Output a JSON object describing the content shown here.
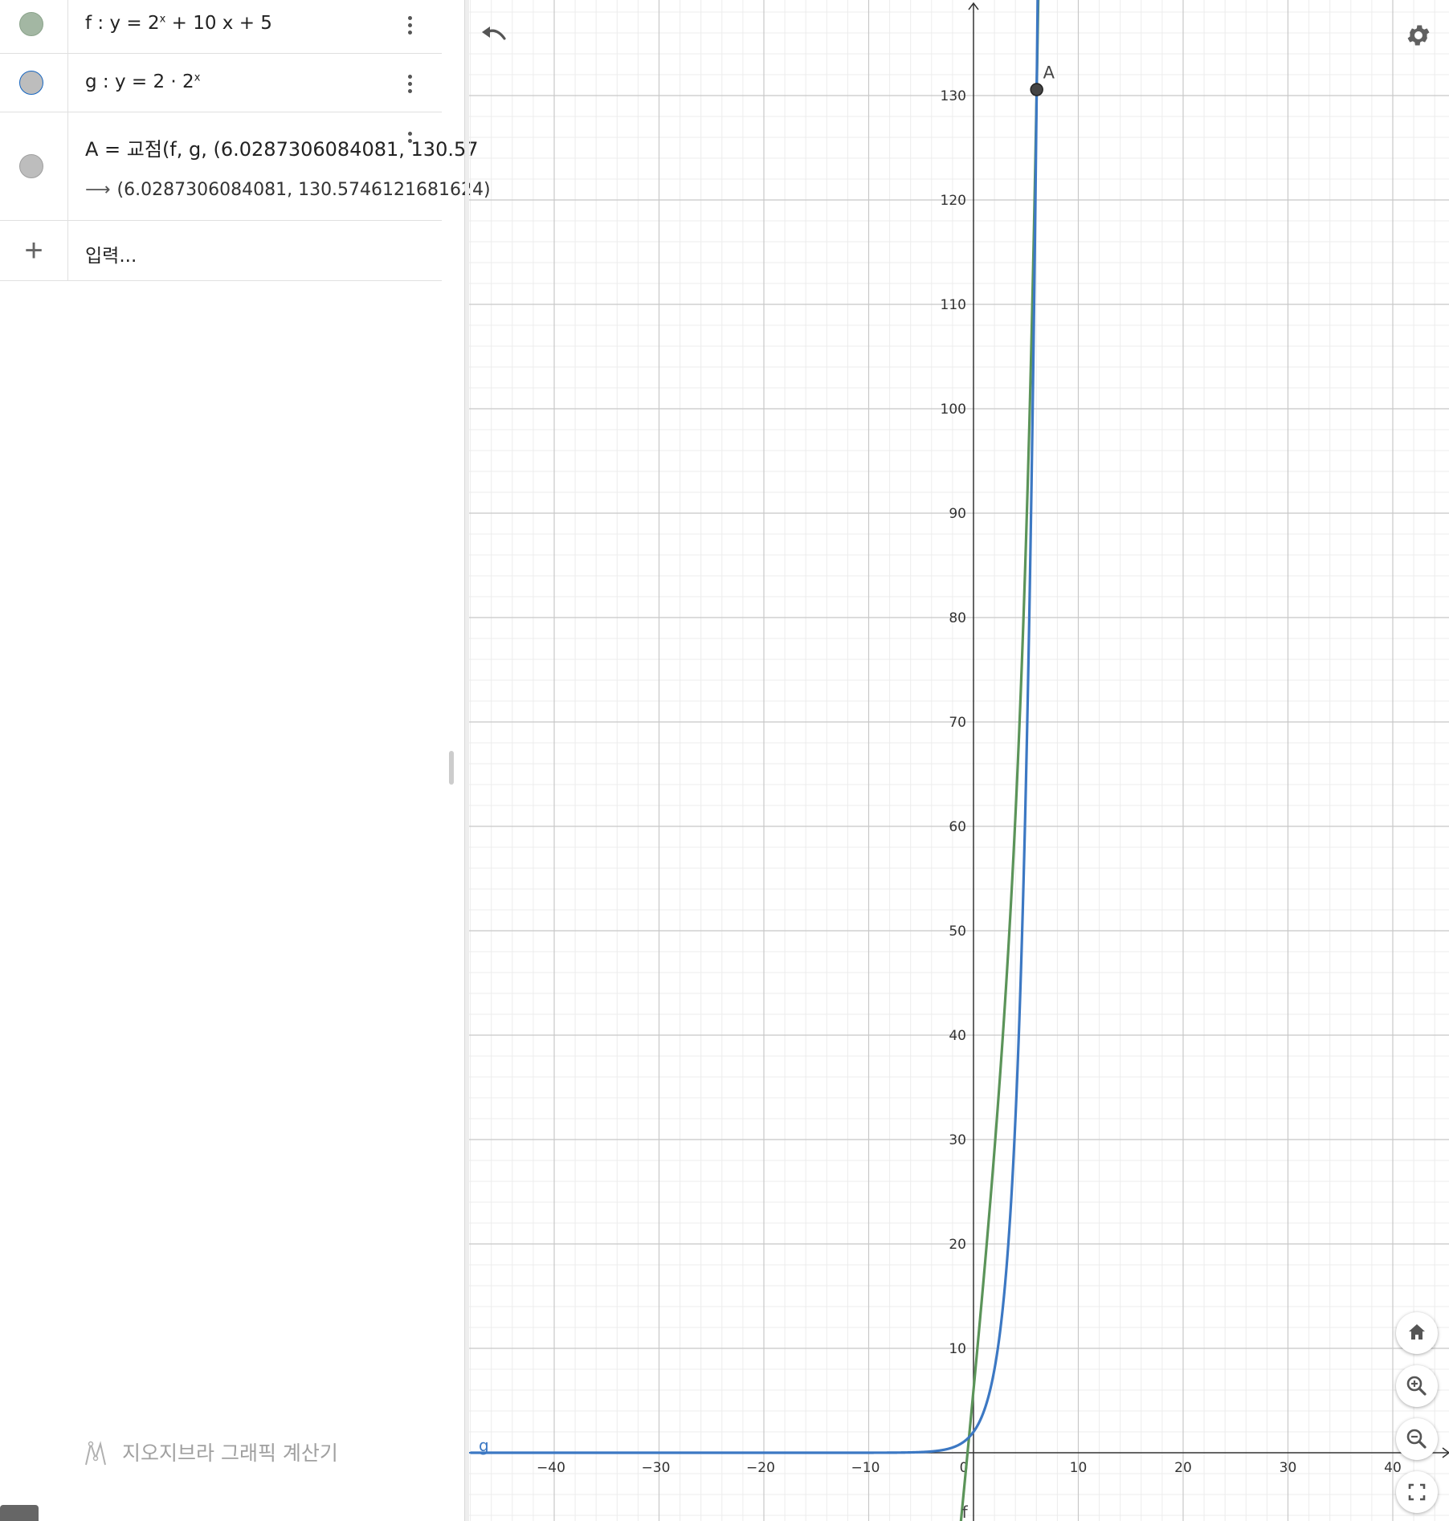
{
  "algebra": {
    "items": [
      {
        "name": "f",
        "definition_prefix": "f :  y = 2",
        "definition_exp": "x",
        "definition_suffix": " + 10 x + 5",
        "color": "#a3b7a3",
        "border": "#8aa38a"
      },
      {
        "name": "g",
        "definition_prefix": "g :  y = 2 · 2",
        "definition_exp": "x",
        "definition_suffix": "",
        "color": "#bdbdbd",
        "border": "#1565c0"
      },
      {
        "name": "A",
        "definition": "A  =  교점(f, g, (6.0287306084081, 130.57",
        "result_arrow": "⟶",
        "result": "(6.0287306084081, 130.5746121681624)",
        "color": "#bdbdbd",
        "border": "#9e9e9e"
      }
    ],
    "input_placeholder": "입력...",
    "add_icon": "plus-icon",
    "app_name": "지오지브라 그래픽 계산기"
  },
  "graphics": {
    "x_ticks": [
      "−40",
      "−30",
      "−20",
      "−10",
      "0",
      "10",
      "20",
      "30",
      "40"
    ],
    "y_ticks": [
      "10",
      "20",
      "30",
      "40",
      "50",
      "60",
      "70",
      "80",
      "90",
      "100",
      "110",
      "120",
      "130"
    ],
    "point_label": "A",
    "curve_label_g": "g",
    "curve_label_f": "f",
    "colors": {
      "f": "#5b9459",
      "g": "#3c78c3",
      "point": "#444444"
    },
    "buttons": [
      "undo-icon",
      "settings-icon",
      "home-icon",
      "zoom-in-icon",
      "zoom-out-icon",
      "fullscreen-icon"
    ]
  },
  "chart_data": {
    "type": "line",
    "xlim": [
      -48,
      45.5
    ],
    "ylim": [
      -7,
      138.5
    ],
    "grid": true,
    "series": [
      {
        "name": "f",
        "formula": "2^x + 10x + 5",
        "color": "#5b9459"
      },
      {
        "name": "g",
        "formula": "2*2^x",
        "color": "#3c78c3"
      }
    ],
    "points": [
      {
        "name": "A",
        "x": 6.0287306084081,
        "y": 130.5746121681624
      }
    ]
  }
}
